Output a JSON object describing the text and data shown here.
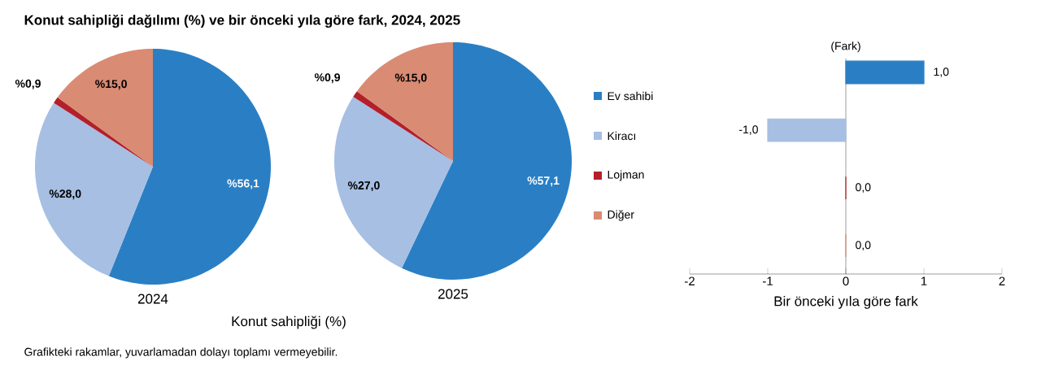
{
  "chart_data": [
    {
      "type": "pie",
      "title": "Konut sahipliği dağılımı (%) ve bir önceki yıla göre fark, 2024, 2025",
      "xlabel": "2024",
      "categories": [
        null,
        null,
        null,
        null
      ],
      "values": [
        56.1,
        28.0,
        0.9,
        15.0
      ],
      "colors": [
        "#2a7fc4",
        "#a6bfe3",
        "#b3202a",
        "#d98b73"
      ],
      "value_labels": [
        "%56,1",
        "%28,0",
        "%0,9",
        "%15,0"
      ],
      "annotations": [
        "Konut sahipliği (%)",
        "Grafikteki rakamlar, yuvarlamadan dolayı toplamı vermeyebilir."
      ]
    },
    {
      "type": "pie",
      "xlabel": "2025",
      "categories": [
        "Ev sahibi",
        "Kiracı",
        "Lojman",
        "Diğer"
      ],
      "values": [
        57.1,
        27.0,
        0.9,
        15.0
      ],
      "colors": [
        "#2a7fc4",
        "#a6bfe3",
        "#b3202a",
        "#d98b73"
      ],
      "value_labels": [
        "%57,1",
        "%27,0",
        "%0,9",
        "%15,0"
      ],
      "legend": "right"
    },
    {
      "type": "bar",
      "orientation": "horizontal",
      "categories": [
        null,
        null,
        null,
        null
      ],
      "values": [
        1.0,
        -1.0,
        0.0,
        0.0
      ],
      "colors": [
        "#2a7fc4",
        "#a6bfe3",
        "#b3202a",
        "#d98b73"
      ],
      "value_labels": [
        "1,0",
        "-1,0",
        "0,0",
        "0,0"
      ],
      "xlim": [
        -2,
        2
      ],
      "xticks": [
        -2,
        -1,
        0,
        1,
        2
      ],
      "xlabel": "Bir önceki yıla göre fark",
      "ylabel": "(Fark)"
    }
  ]
}
